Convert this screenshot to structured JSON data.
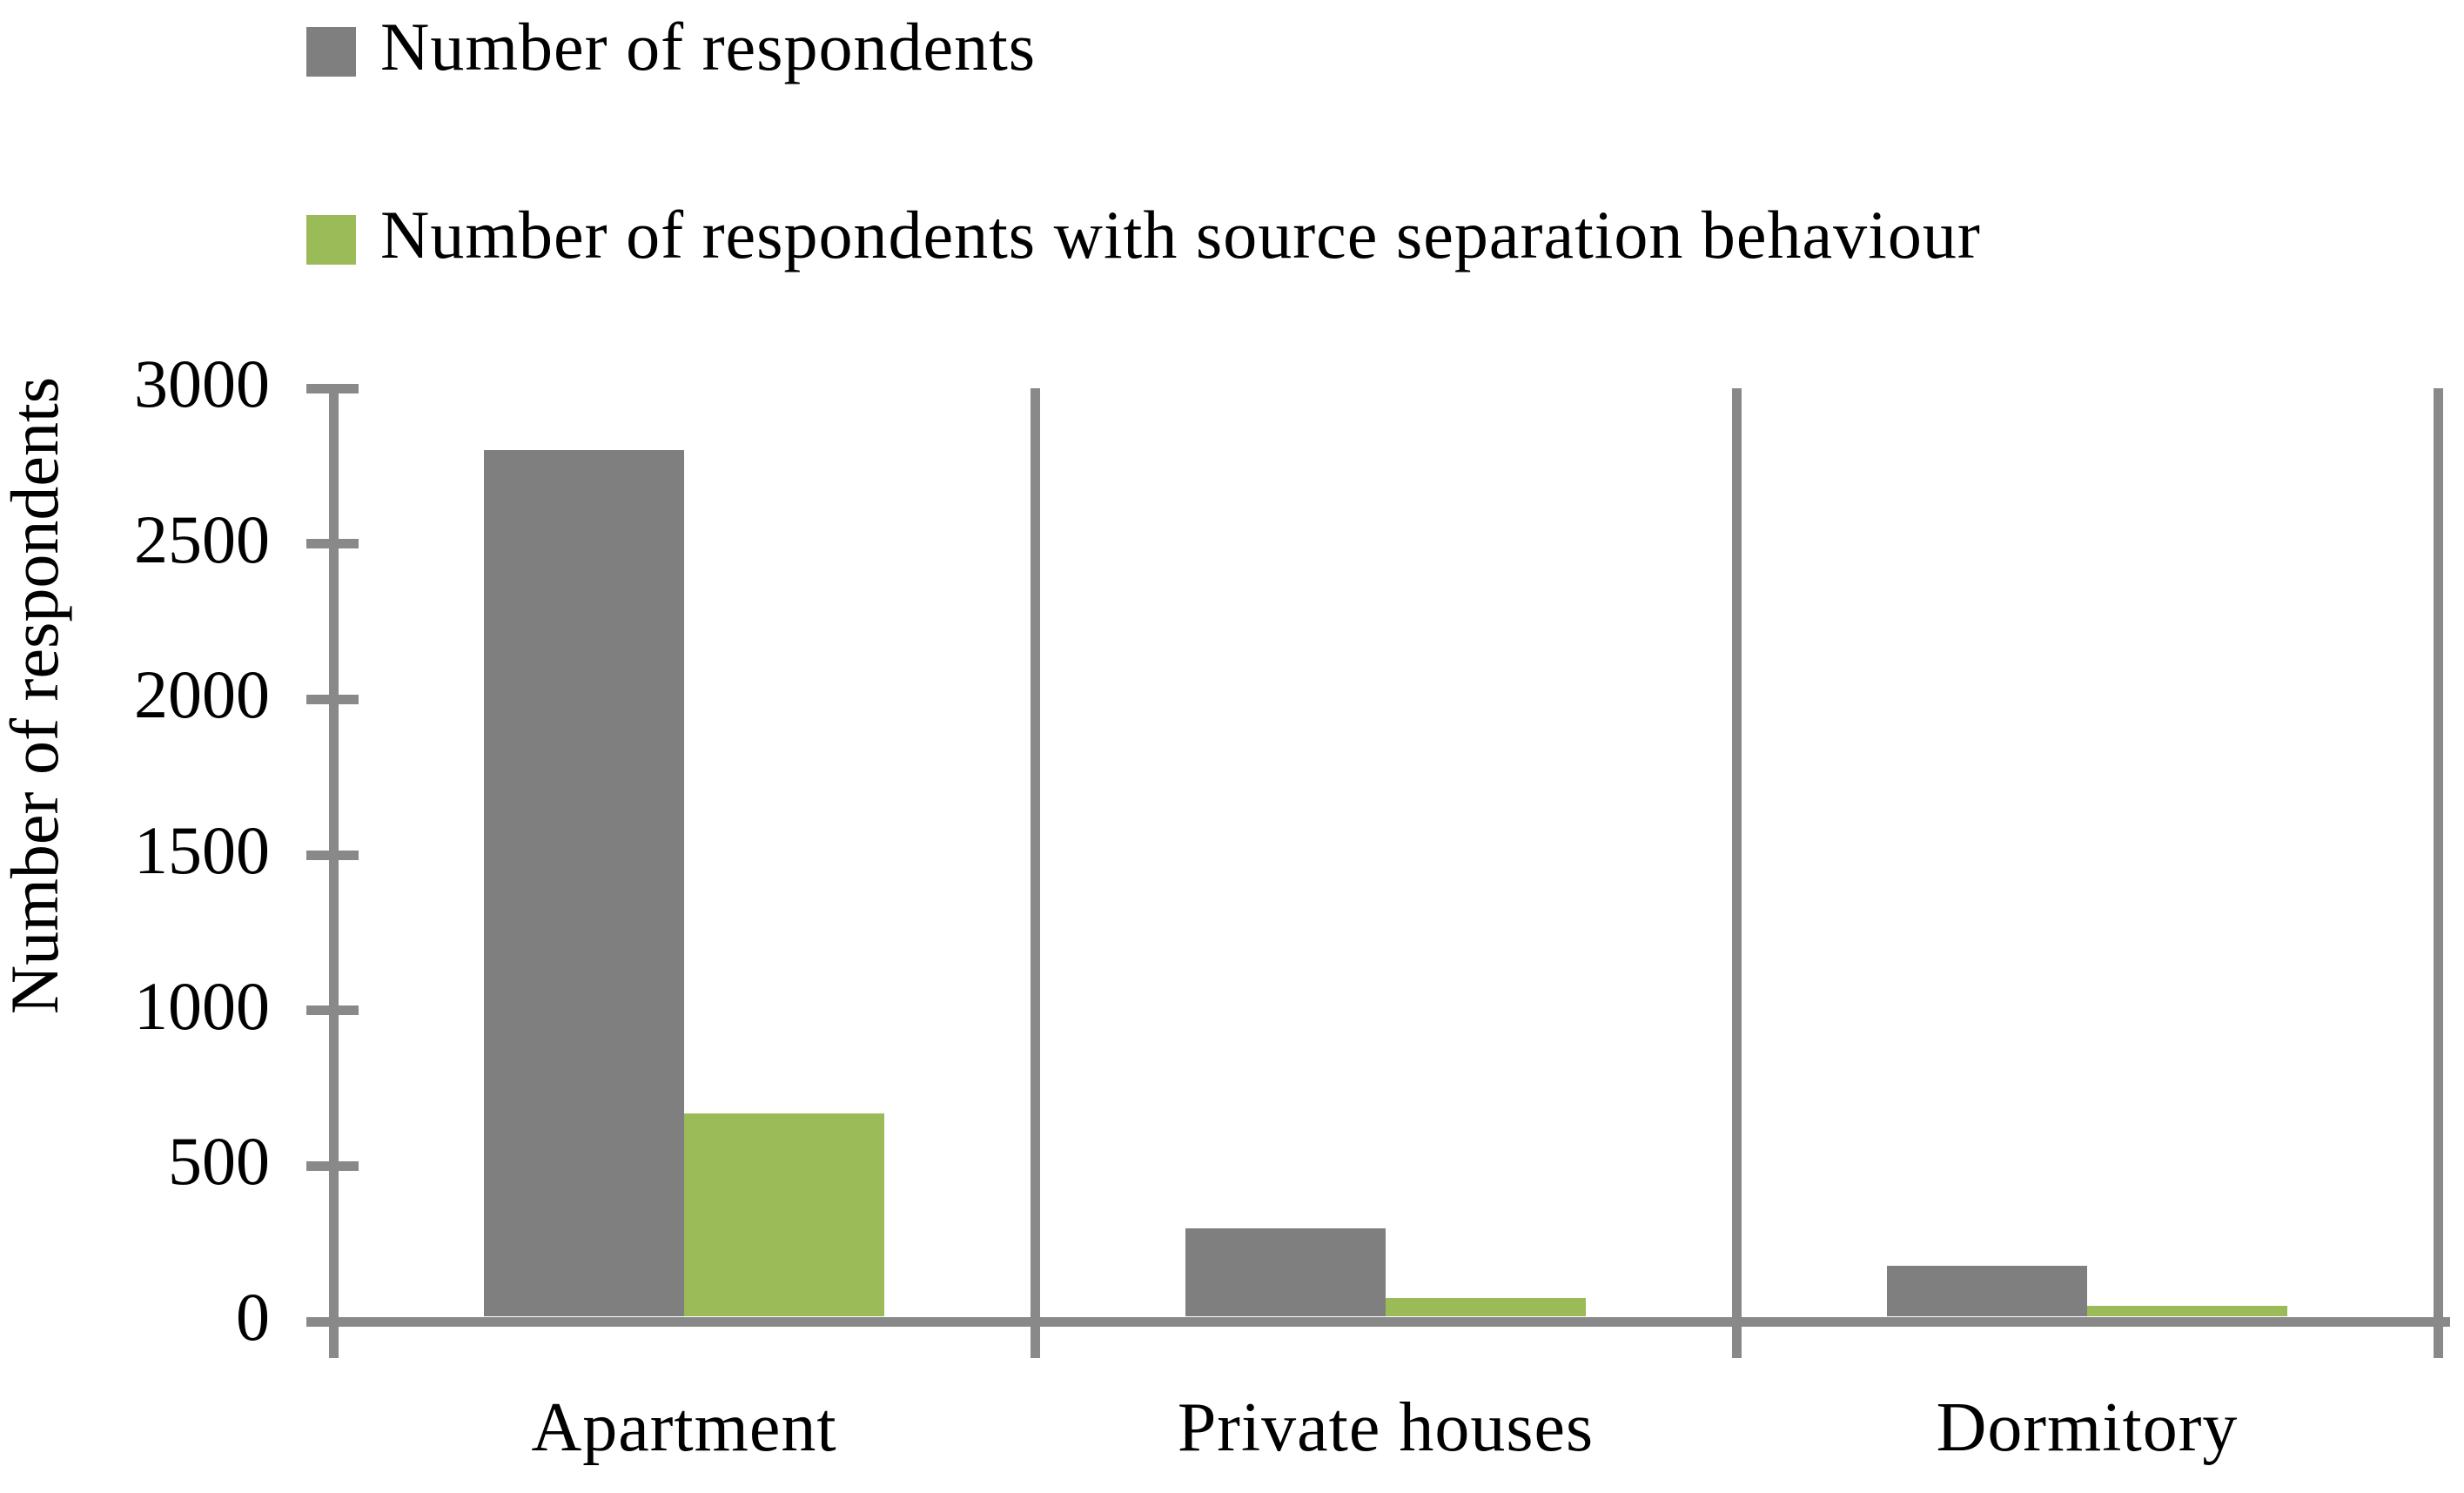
{
  "legend": {
    "items": [
      {
        "label": "Number of respondents",
        "color": "#7F7F7F"
      },
      {
        "label": "Number of respondents with source separation behaviour",
        "color": "#9BBB59"
      }
    ]
  },
  "y_axis": {
    "title": "Number of respondents",
    "tick_labels": [
      "3000",
      "2500",
      "2000",
      "1500",
      "1000",
      "500",
      "0"
    ]
  },
  "chart_data": {
    "type": "bar",
    "categories": [
      "Apartment",
      "Private houses",
      "Dormitory"
    ],
    "series": [
      {
        "name": "Number of respondents",
        "color": "#7F7F7F",
        "values": [
          2800,
          300,
          180
        ]
      },
      {
        "name": "Number of respondents with source separation behaviour",
        "color": "#9BBB59",
        "values": [
          670,
          75,
          50
        ]
      }
    ],
    "title": "",
    "xlabel": "",
    "ylabel": "Number of respondents",
    "ylim": [
      0,
      3000
    ],
    "ystep": 500,
    "grid": false,
    "legend_position": "top-left",
    "category_dividers": true
  },
  "colors": {
    "bar_gray": "#7F7F7F",
    "bar_green": "#9BBB59",
    "axis_line": "#898989",
    "text": "#000000",
    "background": "#FFFFFF"
  }
}
